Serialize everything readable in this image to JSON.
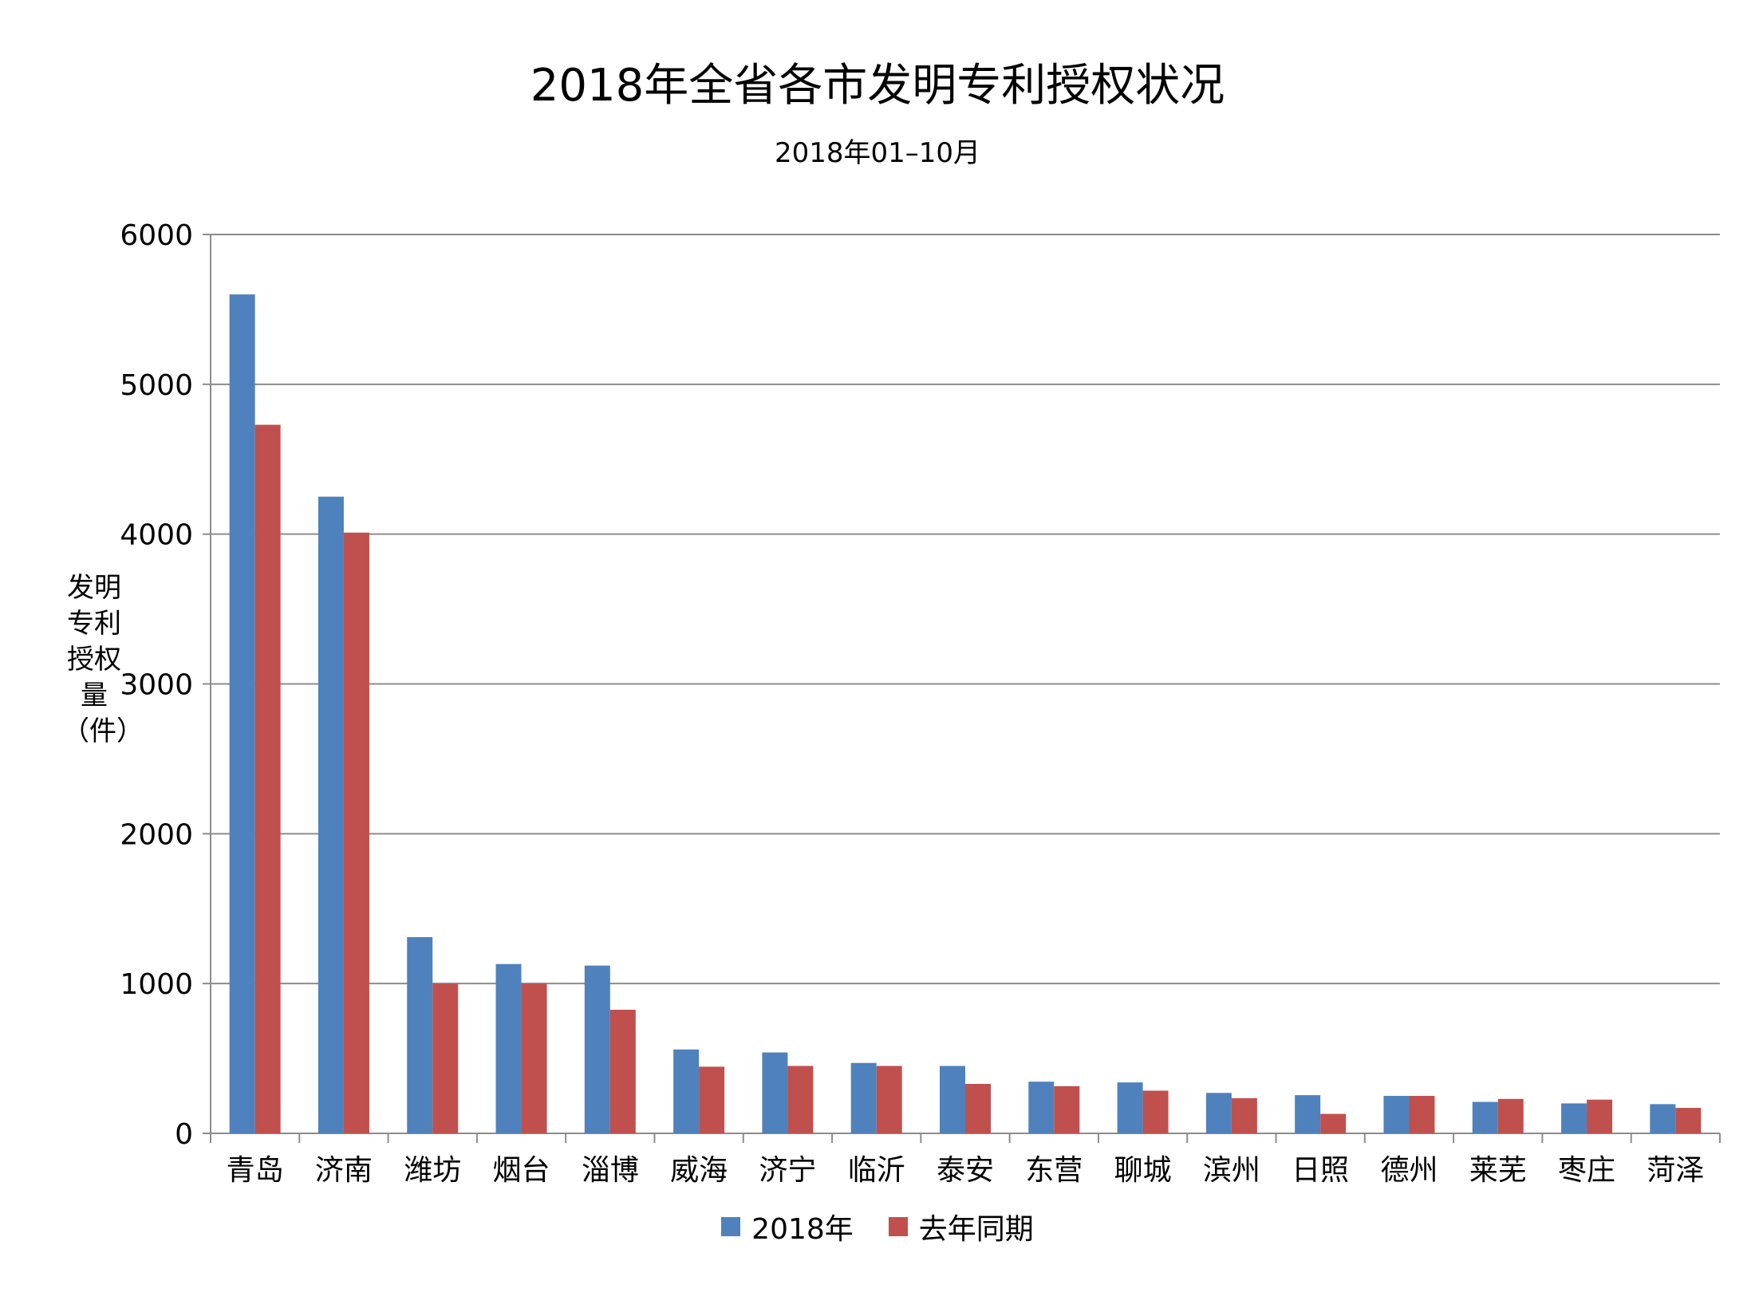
{
  "chart_data": {
    "type": "bar",
    "title": "2018年全省各市发明专利授权状况",
    "subtitle": "2018年01–10月",
    "ylabel": "发明专利授权量（件）",
    "xlabel": "",
    "ylim": [
      0,
      6000
    ],
    "yticks": [
      0,
      1000,
      2000,
      3000,
      4000,
      5000,
      6000
    ],
    "grid": true,
    "legend_position": "bottom",
    "categories": [
      "青岛",
      "济南",
      "潍坊",
      "烟台",
      "淄博",
      "威海",
      "济宁",
      "临沂",
      "泰安",
      "东营",
      "聊城",
      "滨州",
      "日照",
      "德州",
      "莱芜",
      "枣庄",
      "菏泽"
    ],
    "series": [
      {
        "name": "2018年",
        "color": "#4F81BD",
        "values": [
          5600,
          4250,
          1310,
          1130,
          1120,
          560,
          540,
          470,
          450,
          345,
          340,
          270,
          255,
          250,
          210,
          200,
          195
        ]
      },
      {
        "name": "去年同期",
        "color": "#C0504D",
        "values": [
          4730,
          4010,
          1000,
          1000,
          825,
          445,
          450,
          450,
          330,
          315,
          285,
          235,
          130,
          250,
          230,
          225,
          170
        ]
      }
    ]
  }
}
